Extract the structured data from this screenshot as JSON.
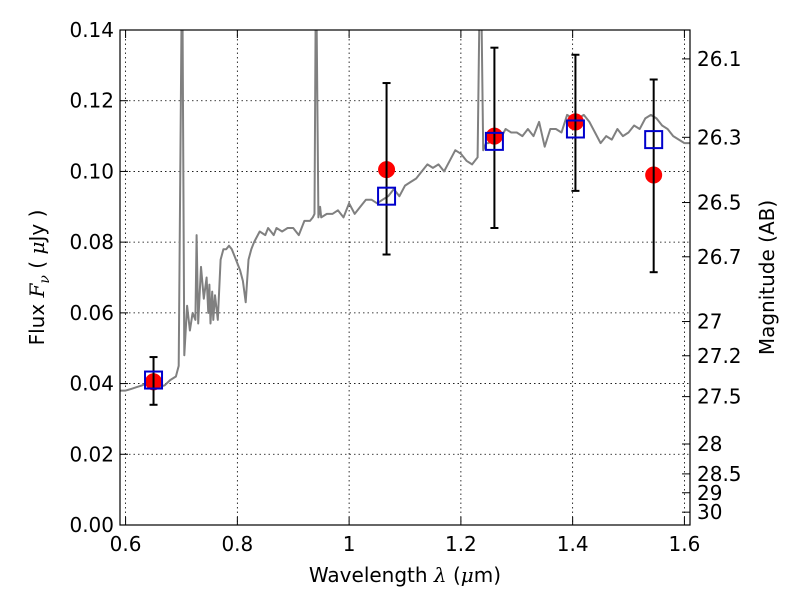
{
  "chart_data": {
    "type": "scatter",
    "xlabel": {
      "prefix": "Wavelength  ",
      "symbol": "λ",
      "unit_open": " (",
      "unit_mu": "μ",
      "unit_close": "m)"
    },
    "ylabel": {
      "prefix": "Flux  ",
      "symbol": "F",
      "sub": "ν",
      "unit_open": "  ( ",
      "unit_mu": "μ",
      "unit_close": "Jy )"
    },
    "y2label": "Magnitude (AB)",
    "xlim": [
      0.59,
      1.61
    ],
    "ylim": [
      0.0,
      0.14
    ],
    "grid": true,
    "x_ticks": [
      {
        "value": 0.6,
        "label": "0.6"
      },
      {
        "value": 0.8,
        "label": "0.8"
      },
      {
        "value": 1.0,
        "label": "1"
      },
      {
        "value": 1.2,
        "label": "1.2"
      },
      {
        "value": 1.4,
        "label": "1.4"
      },
      {
        "value": 1.6,
        "label": "1.6"
      }
    ],
    "y_ticks": [
      {
        "value": 0.0,
        "label": "0.00"
      },
      {
        "value": 0.02,
        "label": "0.02"
      },
      {
        "value": 0.04,
        "label": "0.04"
      },
      {
        "value": 0.06,
        "label": "0.06"
      },
      {
        "value": 0.08,
        "label": "0.08"
      },
      {
        "value": 0.1,
        "label": "0.10"
      },
      {
        "value": 0.12,
        "label": "0.12"
      },
      {
        "value": 0.14,
        "label": "0.14"
      }
    ],
    "y2_ticks": [
      {
        "value": 26.1,
        "label": "26.1"
      },
      {
        "value": 26.3,
        "label": "26.3"
      },
      {
        "value": 26.5,
        "label": "26.5"
      },
      {
        "value": 26.7,
        "label": "26.7"
      },
      {
        "value": 27.0,
        "label": "27"
      },
      {
        "value": 27.2,
        "label": "27.2"
      },
      {
        "value": 27.5,
        "label": "27.5"
      },
      {
        "value": 28.0,
        "label": "28"
      },
      {
        "value": 28.5,
        "label": "28.5"
      },
      {
        "value": 29.0,
        "label": "29"
      },
      {
        "value": 30.0,
        "label": "30"
      }
    ],
    "series": [
      {
        "kind": "line",
        "color": "#808080",
        "x": [
          0.59,
          0.6,
          0.61,
          0.62,
          0.63,
          0.64,
          0.65,
          0.66,
          0.67,
          0.68,
          0.69,
          0.695,
          0.7,
          0.702,
          0.705,
          0.71,
          0.715,
          0.72,
          0.725,
          0.727,
          0.73,
          0.735,
          0.74,
          0.745,
          0.748,
          0.75,
          0.752,
          0.755,
          0.757,
          0.76,
          0.765,
          0.77,
          0.775,
          0.78,
          0.785,
          0.79,
          0.795,
          0.8,
          0.805,
          0.81,
          0.815,
          0.82,
          0.825,
          0.83,
          0.84,
          0.85,
          0.855,
          0.86,
          0.865,
          0.87,
          0.88,
          0.89,
          0.9,
          0.91,
          0.92,
          0.93,
          0.935,
          0.938,
          0.94,
          0.942,
          0.945,
          0.948,
          0.95,
          0.96,
          0.97,
          0.98,
          0.99,
          1.0,
          1.01,
          1.02,
          1.03,
          1.04,
          1.05,
          1.06,
          1.07,
          1.08,
          1.09,
          1.1,
          1.11,
          1.12,
          1.13,
          1.14,
          1.15,
          1.16,
          1.17,
          1.18,
          1.19,
          1.2,
          1.21,
          1.22,
          1.23,
          1.233,
          1.235,
          1.237,
          1.24,
          1.245,
          1.25,
          1.255,
          1.26,
          1.27,
          1.28,
          1.29,
          1.3,
          1.31,
          1.32,
          1.33,
          1.34,
          1.35,
          1.36,
          1.37,
          1.38,
          1.39,
          1.4,
          1.41,
          1.42,
          1.43,
          1.44,
          1.45,
          1.46,
          1.47,
          1.48,
          1.49,
          1.5,
          1.51,
          1.52,
          1.53,
          1.54,
          1.55,
          1.56,
          1.57,
          1.58,
          1.59,
          1.6,
          1.61
        ],
        "y": [
          0.038,
          0.038,
          0.0385,
          0.039,
          0.0395,
          0.0405,
          0.04,
          0.039,
          0.0395,
          0.041,
          0.042,
          0.045,
          0.142,
          0.14,
          0.048,
          0.062,
          0.055,
          0.06,
          0.058,
          0.082,
          0.057,
          0.073,
          0.064,
          0.07,
          0.06,
          0.068,
          0.057,
          0.066,
          0.058,
          0.065,
          0.058,
          0.075,
          0.078,
          0.078,
          0.079,
          0.078,
          0.076,
          0.074,
          0.072,
          0.069,
          0.063,
          0.075,
          0.078,
          0.08,
          0.083,
          0.082,
          0.084,
          0.083,
          0.082,
          0.084,
          0.083,
          0.084,
          0.084,
          0.082,
          0.086,
          0.086,
          0.087,
          0.088,
          0.142,
          0.14,
          0.087,
          0.09,
          0.087,
          0.088,
          0.088,
          0.089,
          0.087,
          0.091,
          0.088,
          0.09,
          0.092,
          0.092,
          0.091,
          0.092,
          0.093,
          0.095,
          0.093,
          0.096,
          0.097,
          0.098,
          0.1,
          0.102,
          0.101,
          0.102,
          0.1,
          0.103,
          0.106,
          0.105,
          0.103,
          0.102,
          0.104,
          0.142,
          0.141,
          0.142,
          0.106,
          0.108,
          0.108,
          0.11,
          0.108,
          0.109,
          0.112,
          0.111,
          0.111,
          0.11,
          0.112,
          0.11,
          0.114,
          0.107,
          0.112,
          0.112,
          0.111,
          0.116,
          0.115,
          0.115,
          0.116,
          0.114,
          0.111,
          0.108,
          0.11,
          0.109,
          0.112,
          0.11,
          0.111,
          0.113,
          0.112,
          0.115,
          0.116,
          0.115,
          0.113,
          0.112,
          0.11,
          0.109,
          0.108,
          0.108
        ]
      },
      {
        "kind": "points",
        "marker": "circle",
        "color": "#ff0000",
        "x": [
          0.65,
          1.067,
          1.26,
          1.405,
          1.545
        ],
        "y": [
          0.0405,
          0.1005,
          0.11,
          0.114,
          0.099
        ]
      },
      {
        "kind": "points",
        "marker": "square-open",
        "color": "#0000cc",
        "x": [
          0.65,
          1.067,
          1.26,
          1.405,
          1.545
        ],
        "y": [
          0.041,
          0.093,
          0.1085,
          0.112,
          0.109
        ],
        "yerr_lo": [
          0.034,
          0.0765,
          0.084,
          0.0945,
          0.0715
        ],
        "yerr_hi": [
          0.0475,
          0.125,
          0.135,
          0.133,
          0.126
        ]
      }
    ]
  }
}
